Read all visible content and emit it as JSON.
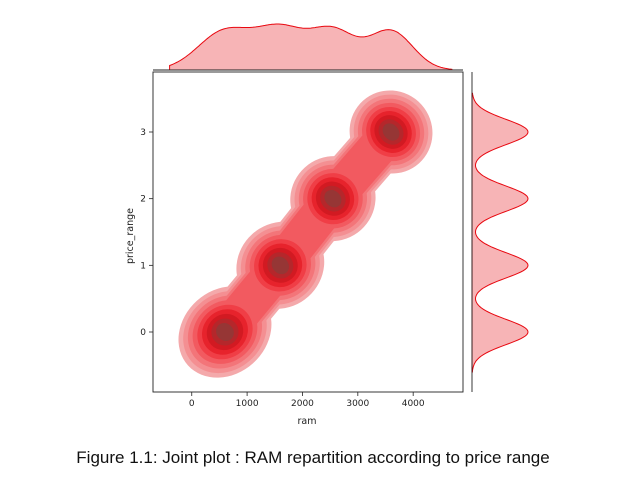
{
  "caption": "Figure 1.1: Joint plot : RAM repartition according to price range",
  "chart_data": {
    "type": "kde-joint",
    "xlabel": "ram",
    "ylabel": "price_range",
    "xlim": [
      -700,
      4900
    ],
    "ylim": [
      -0.9,
      3.9
    ],
    "xticks": [
      0,
      1000,
      2000,
      3000,
      4000
    ],
    "yticks": [
      0,
      1,
      2,
      3
    ],
    "grid": false,
    "color": "#e8070f",
    "clusters": [
      {
        "price_range": 0,
        "ram_center": 600,
        "ram_spread": 420
      },
      {
        "price_range": 1,
        "ram_center": 1600,
        "ram_spread": 380
      },
      {
        "price_range": 2,
        "ram_center": 2550,
        "ram_spread": 360
      },
      {
        "price_range": 3,
        "ram_center": 3600,
        "ram_spread": 340
      }
    ],
    "levels": 9
  }
}
